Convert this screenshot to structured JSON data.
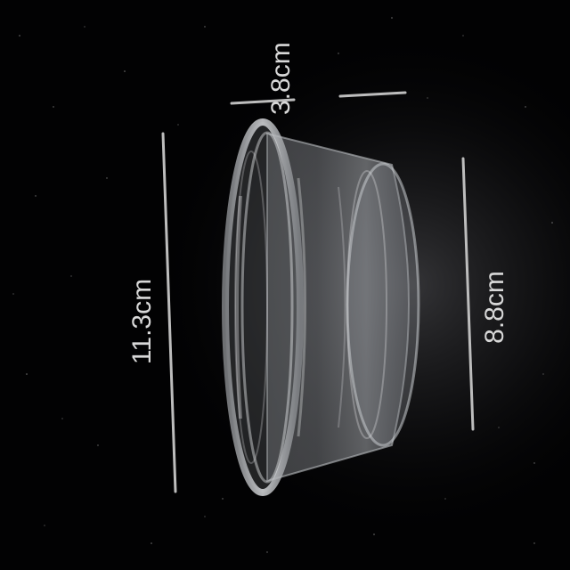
{
  "photo": {
    "subject": "clear-plastic-container-side-view",
    "background_color": "#020203"
  },
  "dimensions": {
    "height_label": "3.8cm",
    "rim_diameter_label": "11.3cm",
    "base_diameter_label": "8.8cm"
  },
  "colors": {
    "measure_line": "#bdbdbd",
    "label_text": "#d8d8d8"
  }
}
